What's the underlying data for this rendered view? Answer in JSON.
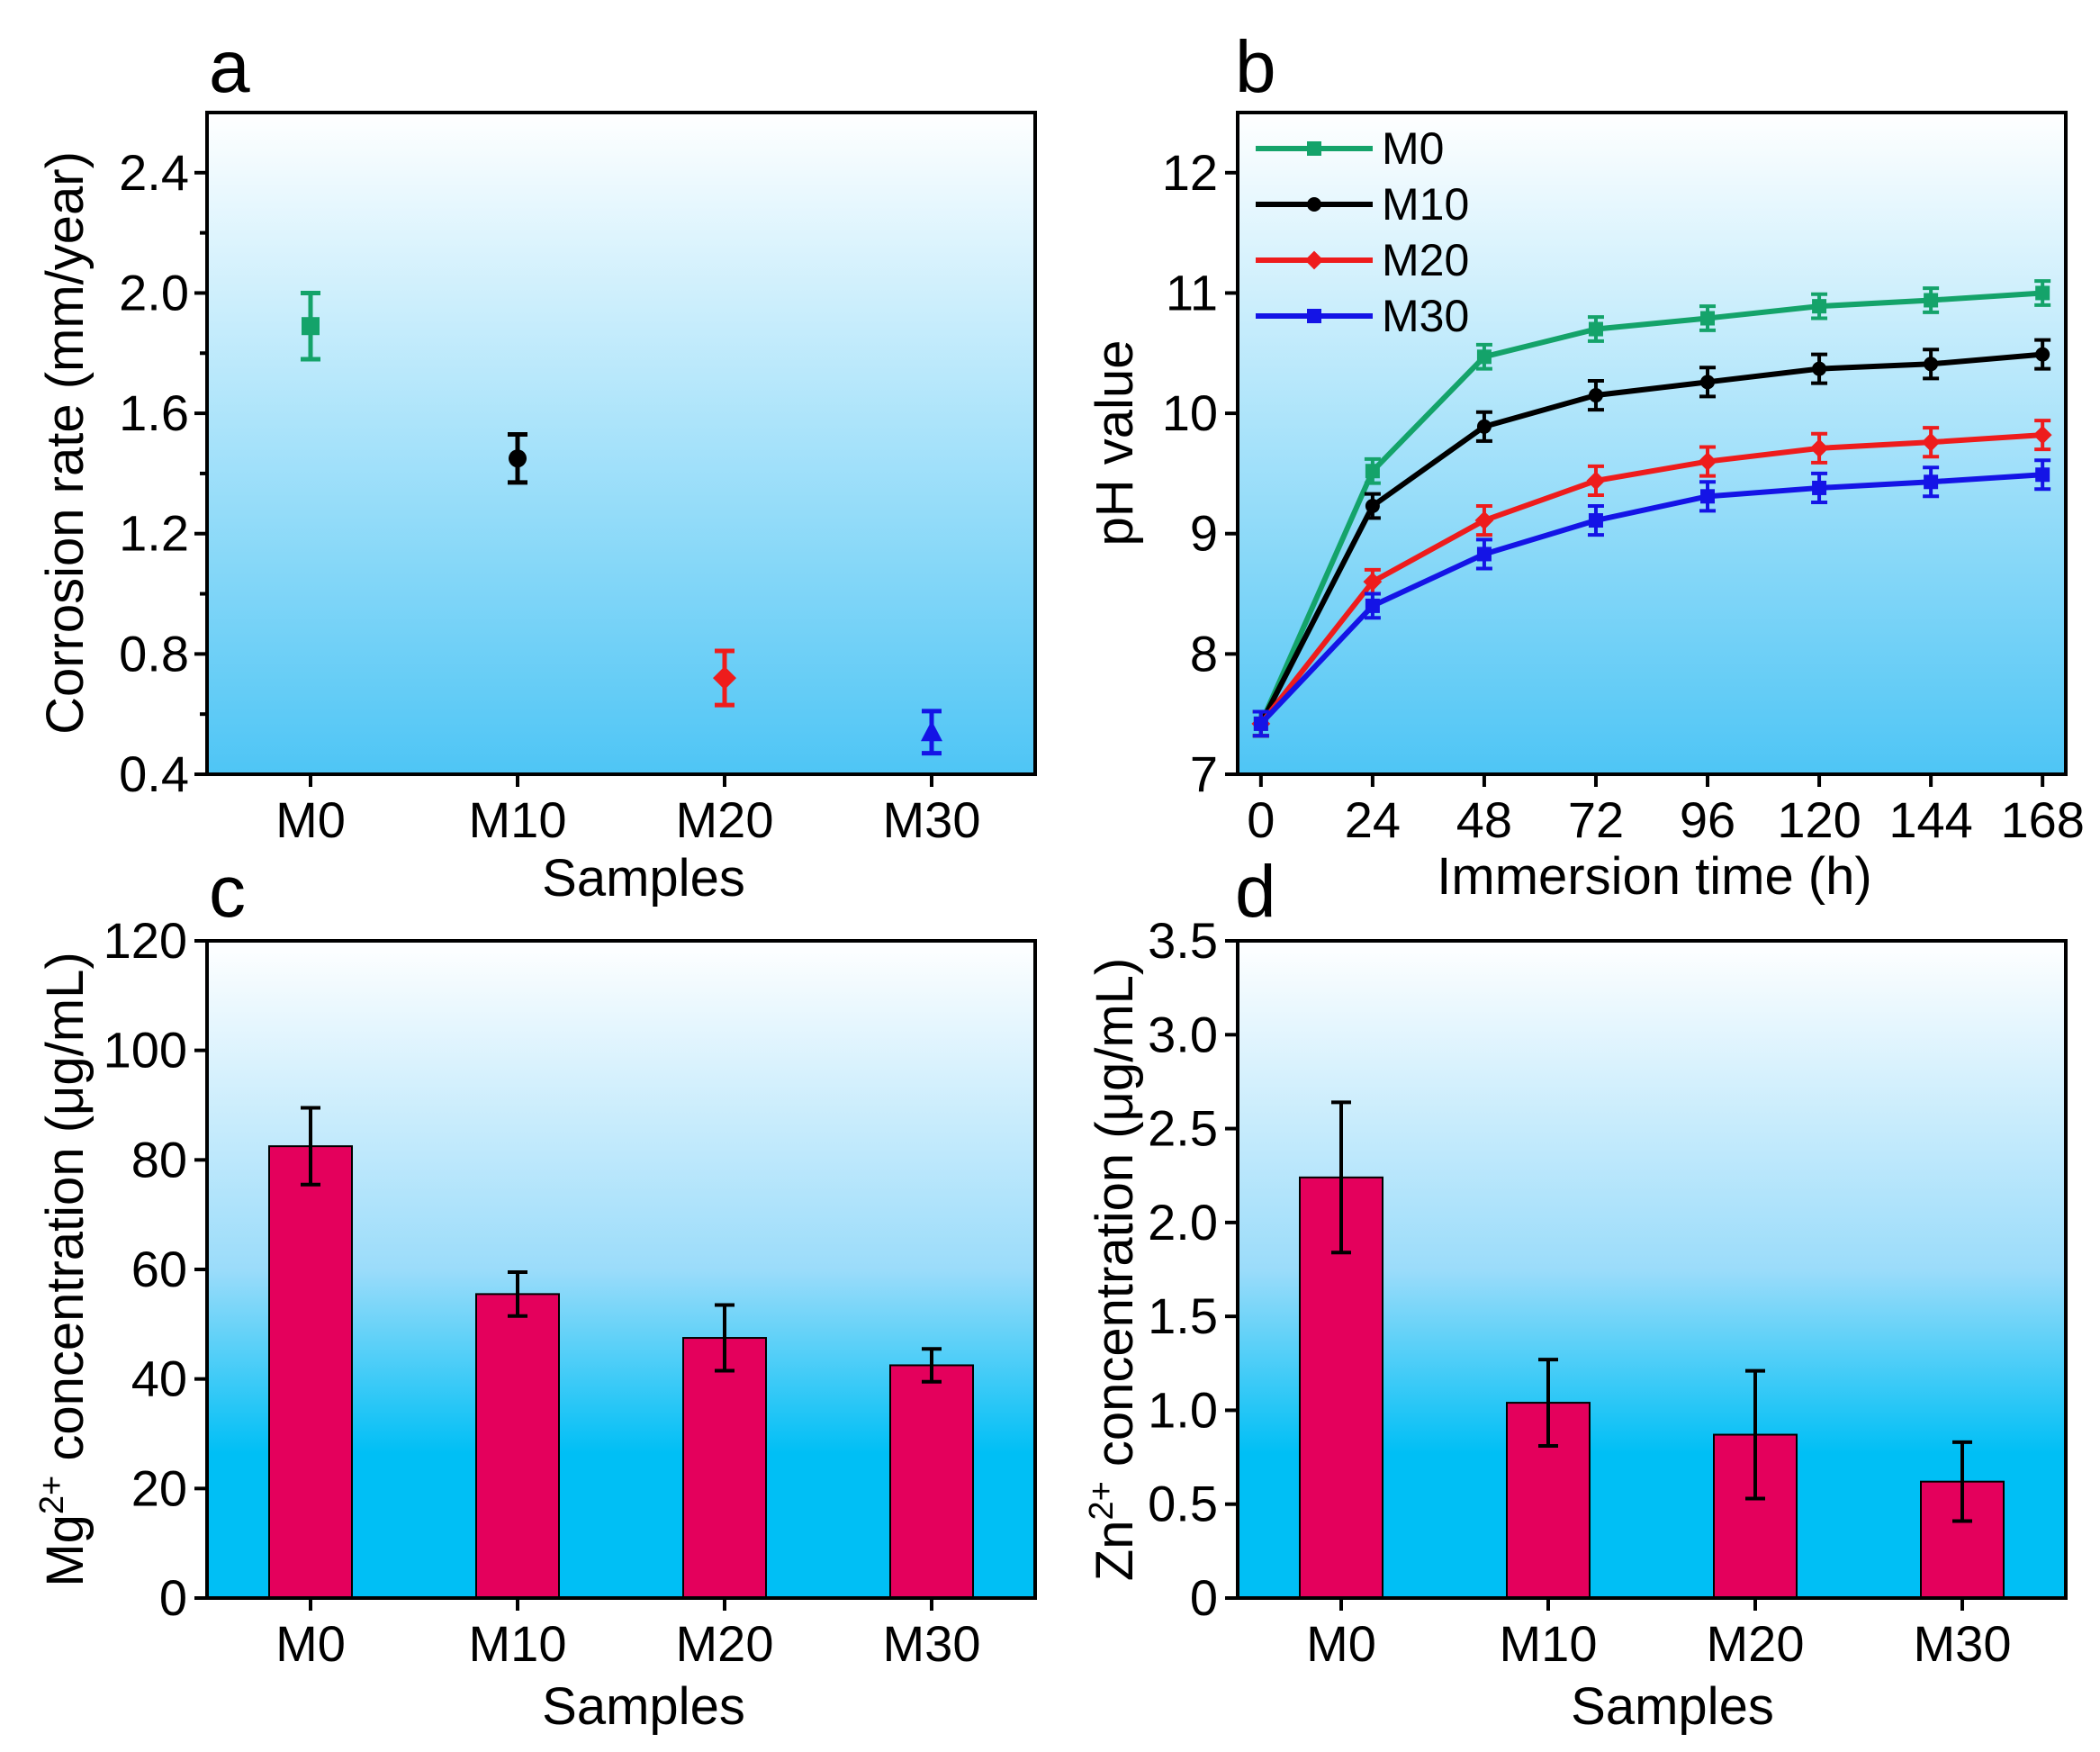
{
  "chart_data": [
    {
      "panel": "a",
      "type": "scatter",
      "title": "",
      "xlabel": "Samples",
      "ylabel": "Corrosion rate (mm/year)",
      "categories": [
        "M0",
        "M10",
        "M20",
        "M30"
      ],
      "values": [
        1.89,
        1.45,
        0.72,
        0.54
      ],
      "errors": [
        0.11,
        0.08,
        0.09,
        0.07
      ],
      "markers": [
        "square",
        "circle",
        "diamond",
        "triangle"
      ],
      "colors": [
        "#14a36a",
        "#000000",
        "#ee1c1c",
        "#1414e6"
      ],
      "ylim": [
        0.4,
        2.6
      ],
      "yticks": [
        "0.4",
        "0.8",
        "1.2",
        "1.6",
        "2.0",
        "2.4"
      ],
      "grid": false
    },
    {
      "panel": "b",
      "type": "line",
      "title": "",
      "xlabel": "Immersion time (h)",
      "ylabel": "pH value",
      "x": [
        0,
        24,
        48,
        72,
        96,
        120,
        144,
        168
      ],
      "xticks": [
        "0",
        "24",
        "48",
        "72",
        "96",
        "120",
        "144",
        "168"
      ],
      "yticks": [
        "7",
        "8",
        "9",
        "10",
        "11",
        "12"
      ],
      "xlim": [
        -5,
        173
      ],
      "ylim": [
        7,
        12.5
      ],
      "legend_position": "top-left",
      "series": [
        {
          "name": "M0",
          "color": "#14a36a",
          "marker": "square",
          "values": [
            7.42,
            9.52,
            10.47,
            10.7,
            10.79,
            10.89,
            10.94,
            11.0
          ],
          "errors": [
            0.1,
            0.1,
            0.1,
            0.1,
            0.1,
            0.1,
            0.1,
            0.1
          ]
        },
        {
          "name": "M10",
          "color": "#000000",
          "marker": "circle",
          "values": [
            7.42,
            9.23,
            9.89,
            10.15,
            10.26,
            10.37,
            10.41,
            10.49
          ],
          "errors": [
            0.1,
            0.1,
            0.12,
            0.12,
            0.12,
            0.12,
            0.12,
            0.12
          ]
        },
        {
          "name": "M20",
          "color": "#ee1c1c",
          "marker": "diamond",
          "values": [
            7.42,
            8.6,
            9.11,
            9.44,
            9.6,
            9.71,
            9.76,
            9.82
          ],
          "errors": [
            0.1,
            0.1,
            0.12,
            0.12,
            0.12,
            0.12,
            0.12,
            0.12
          ]
        },
        {
          "name": "M30",
          "color": "#1414e6",
          "marker": "square",
          "values": [
            7.42,
            8.4,
            8.83,
            9.11,
            9.31,
            9.38,
            9.43,
            9.49
          ],
          "errors": [
            0.1,
            0.1,
            0.12,
            0.12,
            0.12,
            0.12,
            0.12,
            0.12
          ]
        }
      ],
      "grid": false
    },
    {
      "panel": "c",
      "type": "bar",
      "title": "",
      "xlabel": "Samples",
      "ylabel_main": "Mg",
      "ylabel_sup": "2+",
      "ylabel_rest": " concentration (μg/mL)",
      "categories": [
        "M0",
        "M10",
        "M20",
        "M30"
      ],
      "values": [
        82.5,
        55.5,
        47.5,
        42.5
      ],
      "errors": [
        7,
        4,
        6,
        3
      ],
      "bar_color": "#e4005c",
      "ylim": [
        0,
        120
      ],
      "yticks": [
        "0",
        "20",
        "40",
        "60",
        "80",
        "100",
        "120"
      ],
      "grid": false
    },
    {
      "panel": "d",
      "type": "bar",
      "title": "",
      "xlabel": "Samples",
      "ylabel_main": "Zn",
      "ylabel_sup": "2+",
      "ylabel_rest": " concentration (μg/mL)",
      "categories": [
        "M0",
        "M10",
        "M20",
        "M30"
      ],
      "values": [
        2.24,
        1.04,
        0.87,
        0.62
      ],
      "errors": [
        0.4,
        0.23,
        0.34,
        0.21
      ],
      "bar_color": "#e4005c",
      "ylim": [
        0,
        3.5
      ],
      "yticks": [
        "0",
        "0.5",
        "1.0",
        "1.5",
        "2.0",
        "2.5",
        "3.0",
        "3.5"
      ],
      "grid": false
    }
  ]
}
